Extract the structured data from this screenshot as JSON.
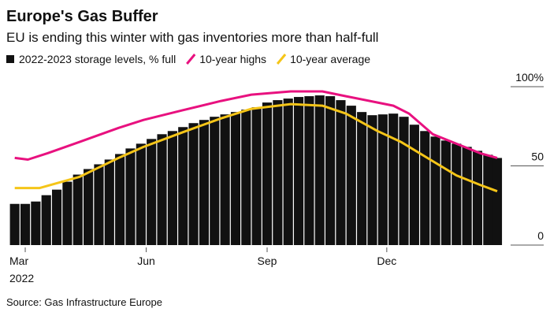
{
  "chart_data": {
    "type": "bar",
    "title": "Europe's Gas Buffer",
    "subtitle": "EU is ending this winter with gas inventories more than half-full",
    "source": "Source: Gas Infrastructure Europe",
    "x_sublabel": "2022",
    "xlim": [
      -9,
      362
    ],
    "xticks": [
      {
        "value": 0,
        "label": "Mar"
      },
      {
        "value": 92,
        "label": "Jun"
      },
      {
        "value": 184,
        "label": "Sep"
      },
      {
        "value": 275,
        "label": "Dec"
      }
    ],
    "ylim": [
      0,
      100
    ],
    "yticks": [
      0,
      50,
      {
        "value": 100,
        "label": "100%"
      }
    ],
    "series": [
      {
        "name": "2022-2023 storage levels, % full",
        "type": "bar",
        "color": "#111111",
        "x": [
          -8,
          0,
          8,
          16,
          24,
          32,
          40,
          48,
          56,
          64,
          72,
          80,
          88,
          96,
          104,
          112,
          120,
          128,
          136,
          144,
          152,
          160,
          168,
          176,
          184,
          192,
          200,
          208,
          216,
          224,
          232,
          240,
          248,
          256,
          264,
          272,
          280,
          288,
          296,
          304,
          312,
          320,
          328,
          336,
          344,
          352,
          359
        ],
        "values": [
          26,
          26,
          27.5,
          31.5,
          35,
          40,
          44.5,
          48,
          51,
          54,
          57.5,
          61,
          64,
          67,
          70,
          72,
          74.5,
          77,
          79,
          81,
          82.5,
          84,
          85.5,
          87,
          90,
          91.5,
          92.5,
          93.5,
          94,
          94.5,
          94,
          91.5,
          88,
          84,
          82,
          82.5,
          83,
          81,
          76,
          72,
          68.5,
          66,
          64,
          62,
          59.5,
          57,
          55
        ]
      },
      {
        "name": "10-year highs",
        "type": "line",
        "color": "#e8117f",
        "x": [
          -8,
          2,
          17,
          41,
          71,
          90,
          119,
          149,
          172,
          202,
          226,
          244,
          268,
          280,
          292,
          310,
          328,
          346,
          359
        ],
        "values": [
          55,
          54,
          58,
          65,
          74,
          79,
          85,
          91,
          95,
          97,
          97,
          94,
          90,
          88,
          83,
          70,
          64,
          58,
          55
        ]
      },
      {
        "name": "10-year average",
        "type": "line",
        "color": "#f5c518",
        "x": [
          -8,
          11,
          41,
          71,
          90,
          119,
          149,
          172,
          202,
          226,
          244,
          268,
          286,
          310,
          328,
          346,
          359
        ],
        "values": [
          36,
          36,
          43,
          55,
          62,
          71,
          80,
          86,
          89,
          88,
          83,
          72,
          65,
          53,
          44,
          38,
          34
        ]
      }
    ]
  }
}
